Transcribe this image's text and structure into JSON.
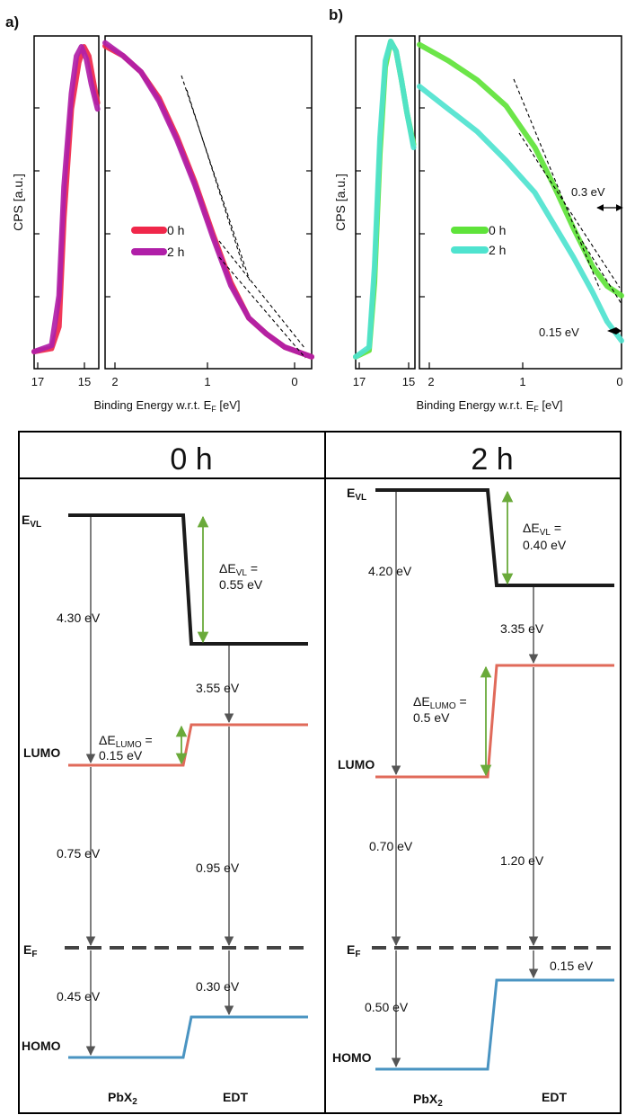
{
  "panels": [
    {
      "label": "a)",
      "ylabel": "CPS [a.u.]",
      "xlabel": "Binding Energy w.r.t. E",
      "xlabel_sub": "F",
      "xlabel_unit": " [eV]",
      "colors": [
        "#f0274a",
        "#b01fa8"
      ],
      "left_ticks": [
        "17",
        "15"
      ],
      "right_ticks": [
        "2",
        "1",
        "0"
      ],
      "legend": [
        "0 h",
        "2 h"
      ],
      "annotations": []
    },
    {
      "label": "b)",
      "ylabel": "CPS [a.u.]",
      "xlabel": "Binding Energy w.r.t. E",
      "xlabel_sub": "F",
      "xlabel_unit": " [eV]",
      "colors": [
        "#5fe33a",
        "#4fe3cf"
      ],
      "left_ticks": [
        "17",
        "15"
      ],
      "right_ticks": [
        "2",
        "1",
        "0"
      ],
      "legend": [
        "0 h",
        "2 h"
      ],
      "annotations": [
        "0.3 eV",
        "0.15 eV"
      ]
    }
  ],
  "chart_data": [
    {
      "type": "line",
      "panel": "a",
      "region": "cutoff",
      "xlim": [
        17,
        14.4
      ],
      "series": [
        {
          "name": "0 h",
          "x": [
            17.0,
            16.3,
            16.0,
            15.8,
            15.5,
            15.2,
            15.0,
            14.8,
            14.6,
            14.45
          ],
          "y": [
            0.02,
            0.03,
            0.1,
            0.45,
            0.8,
            0.95,
            1.0,
            0.97,
            0.88,
            0.82
          ]
        },
        {
          "name": "2 h",
          "x": [
            17.0,
            16.3,
            16.0,
            15.8,
            15.5,
            15.3,
            15.1,
            14.9,
            14.7,
            14.45
          ],
          "y": [
            0.02,
            0.04,
            0.2,
            0.55,
            0.85,
            0.97,
            1.0,
            0.96,
            0.88,
            0.8
          ]
        }
      ]
    },
    {
      "type": "line",
      "panel": "a",
      "region": "valence",
      "xlim": [
        2.1,
        -0.2
      ],
      "series": [
        {
          "name": "0 h",
          "x": [
            2.1,
            1.9,
            1.7,
            1.5,
            1.3,
            1.1,
            0.9,
            0.7,
            0.5,
            0.3,
            0.1,
            -0.2
          ],
          "y": [
            0.98,
            0.95,
            0.9,
            0.82,
            0.7,
            0.56,
            0.4,
            0.25,
            0.14,
            0.09,
            0.05,
            0.02
          ]
        },
        {
          "name": "2 h",
          "x": [
            2.1,
            1.9,
            1.7,
            1.5,
            1.3,
            1.1,
            0.9,
            0.7,
            0.5,
            0.3,
            0.1,
            -0.2
          ],
          "y": [
            0.99,
            0.95,
            0.9,
            0.81,
            0.69,
            0.55,
            0.39,
            0.24,
            0.14,
            0.09,
            0.05,
            0.02
          ]
        }
      ]
    },
    {
      "type": "line",
      "panel": "b",
      "region": "cutoff",
      "xlim": [
        17,
        14.8
      ],
      "series": [
        {
          "name": "0 h",
          "x": [
            17.0,
            16.5,
            16.3,
            16.1,
            15.9,
            15.7,
            15.5,
            15.3,
            15.1,
            14.85
          ],
          "y": [
            0.02,
            0.04,
            0.25,
            0.65,
            0.92,
            1.0,
            0.97,
            0.88,
            0.78,
            0.68
          ]
        },
        {
          "name": "2 h",
          "x": [
            17.0,
            16.5,
            16.3,
            16.1,
            15.9,
            15.7,
            15.5,
            15.3,
            15.1,
            14.85
          ],
          "y": [
            0.02,
            0.05,
            0.3,
            0.7,
            0.94,
            1.0,
            0.97,
            0.88,
            0.78,
            0.67
          ]
        }
      ]
    },
    {
      "type": "line",
      "panel": "b",
      "region": "valence",
      "xlim": [
        2.1,
        0
      ],
      "series": [
        {
          "name": "0 h",
          "x": [
            2.1,
            1.8,
            1.5,
            1.2,
            0.9,
            0.7,
            0.5,
            0.3,
            0.15,
            0.0
          ],
          "y": [
            0.99,
            0.94,
            0.88,
            0.8,
            0.67,
            0.55,
            0.42,
            0.3,
            0.24,
            0.21
          ]
        },
        {
          "name": "2 h",
          "x": [
            2.1,
            1.8,
            1.5,
            1.2,
            0.9,
            0.7,
            0.5,
            0.3,
            0.15,
            0.0
          ],
          "y": [
            0.86,
            0.79,
            0.72,
            0.63,
            0.53,
            0.43,
            0.33,
            0.22,
            0.13,
            0.07
          ]
        }
      ]
    }
  ],
  "diagrams": [
    {
      "title": "0 h",
      "evl_label": "E",
      "evl_sub": "VL",
      "ef_label": "E",
      "ef_sub": "F",
      "lumo_label": "LUMO",
      "homo_label": "HOMO",
      "left_name": "PbX",
      "left_sub": "2",
      "right_name": "EDT",
      "v_left_top": "4.30 eV",
      "v_left_mid": "0.75 eV",
      "v_left_bot": "0.45 eV",
      "v_right_top": "3.55 eV",
      "v_right_mid": "0.95 eV",
      "v_right_bot": "0.30 eV",
      "dvl_prefix": "ΔE",
      "dvl_sub": "VL",
      "dvl_eq": " =",
      "dvl_value": "0.55 eV",
      "dlumo_prefix": "ΔE",
      "dlumo_sub": "LUMO",
      "dlumo_eq": " =",
      "dlumo_value": "0.15 eV"
    },
    {
      "title": "2 h",
      "evl_label": "E",
      "evl_sub": "VL",
      "ef_label": "E",
      "ef_sub": "F",
      "lumo_label": "LUMO",
      "homo_label": "HOMO",
      "left_name": "PbX",
      "left_sub": "2",
      "right_name": "EDT",
      "v_left_top": "4.20 eV",
      "v_left_mid": "0.70 eV",
      "v_left_bot": "0.50 eV",
      "v_right_top": "3.35 eV",
      "v_right_mid": "1.20 eV",
      "v_right_bot": "0.15 eV",
      "dvl_prefix": "ΔE",
      "dvl_sub": "VL",
      "dvl_eq": " =",
      "dvl_value": "0.40 eV",
      "dlumo_prefix": "ΔE",
      "dlumo_sub": "LUMO",
      "dlumo_eq": " =",
      "dlumo_value": "0.5 eV"
    }
  ]
}
